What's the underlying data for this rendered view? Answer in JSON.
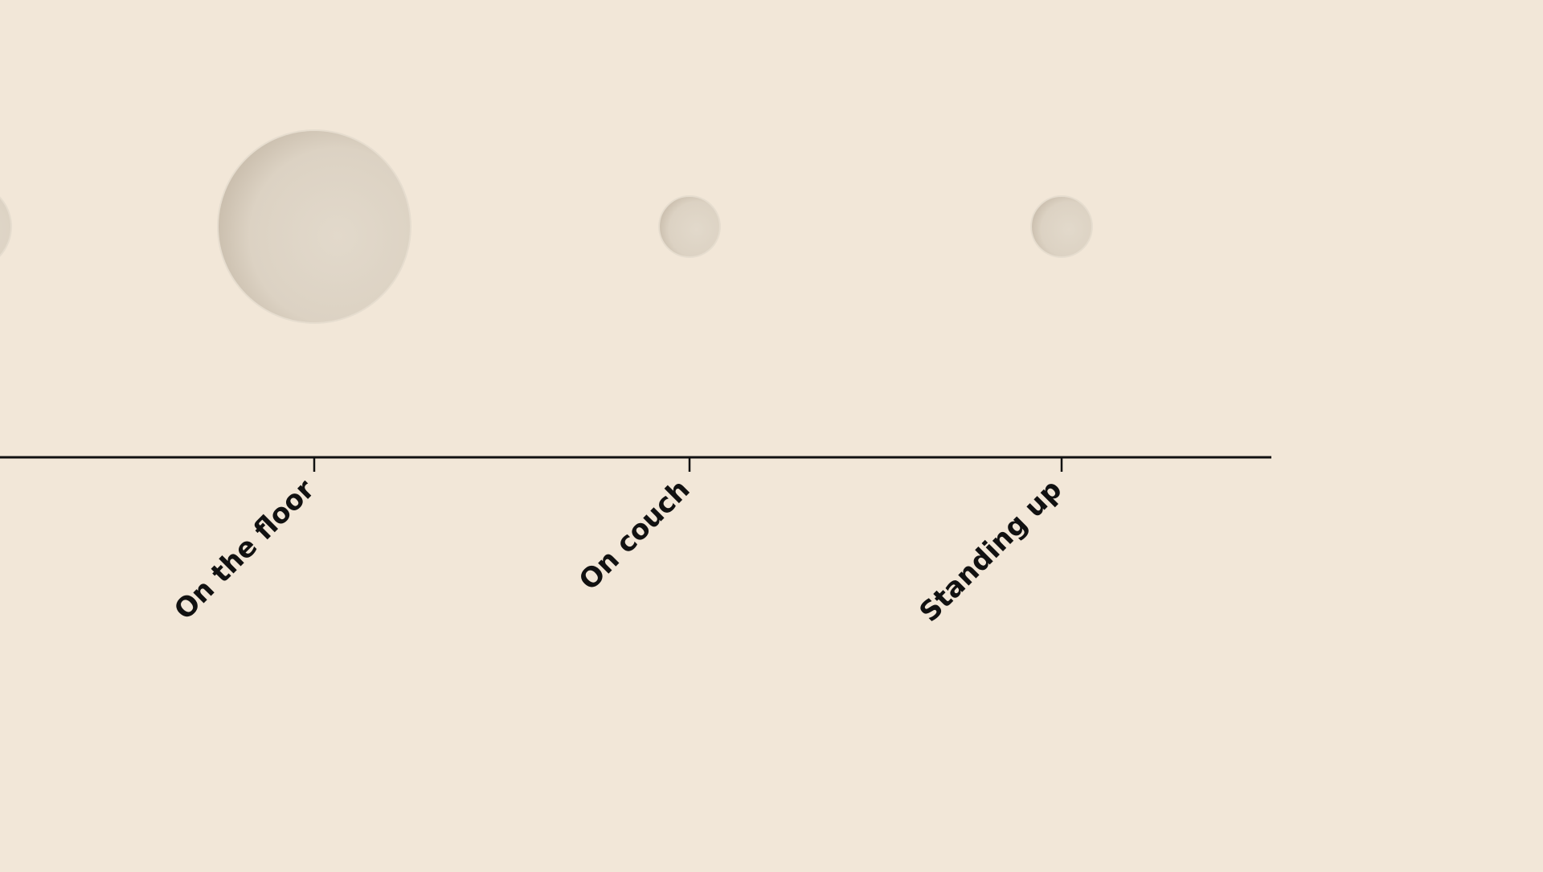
{
  "chart_data": {
    "type": "scatter",
    "categories": [
      "",
      "On the floor",
      "On couch",
      "Standing up"
    ],
    "values": [
      null,
      10,
      1,
      1
    ],
    "title": "",
    "xlabel": "",
    "ylabel": "",
    "grid": false,
    "legend": "none"
  },
  "colors": {
    "background": "#f2e7d8",
    "bubble_fill": "#dfd6c8",
    "bubble_shade": "#c9beae",
    "axis": "#111111"
  }
}
